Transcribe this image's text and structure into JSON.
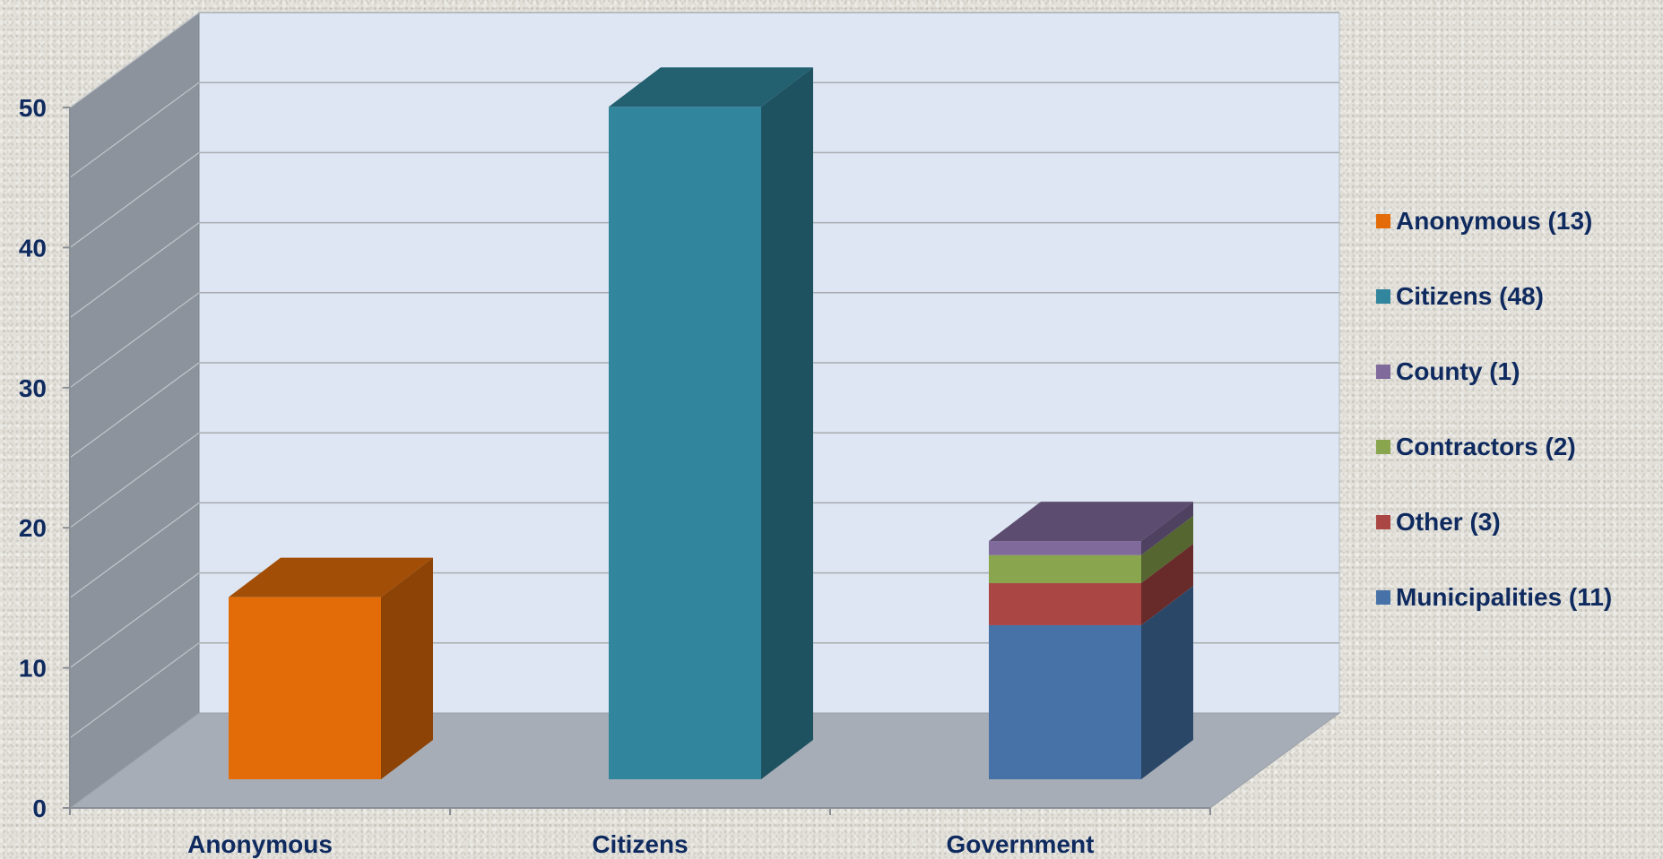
{
  "chart_data": {
    "type": "bar",
    "stacked": true,
    "three_d": true,
    "categories": [
      "Anonymous",
      "Citizens",
      "Government"
    ],
    "series": [
      {
        "name": "Anonymous (13)",
        "color": "#e36c09",
        "values": [
          13,
          0,
          0
        ]
      },
      {
        "name": "Citizens (48)",
        "color": "#31859c",
        "values": [
          0,
          48,
          0
        ]
      },
      {
        "name": "Municipalities (11)",
        "color": "#4672a8",
        "values": [
          0,
          0,
          11
        ]
      },
      {
        "name": "Other (3)",
        "color": "#aa4643",
        "values": [
          0,
          0,
          3
        ]
      },
      {
        "name": "Contractors (2)",
        "color": "#89a54e",
        "values": [
          0,
          0,
          2
        ]
      },
      {
        "name": "County (1)",
        "color": "#80699b",
        "values": [
          0,
          0,
          1
        ]
      }
    ],
    "legend_order": [
      "Anonymous (13)",
      "Citizens (48)",
      "County (1)",
      "Contractors (2)",
      "Other (3)",
      "Municipalities (11)"
    ],
    "y_ticks": [
      "0",
      "10",
      "20",
      "30",
      "40",
      "50"
    ],
    "ylim": [
      0,
      50
    ],
    "grid": true,
    "legend_position": "right",
    "title": "",
    "xlabel": "",
    "ylabel": ""
  }
}
